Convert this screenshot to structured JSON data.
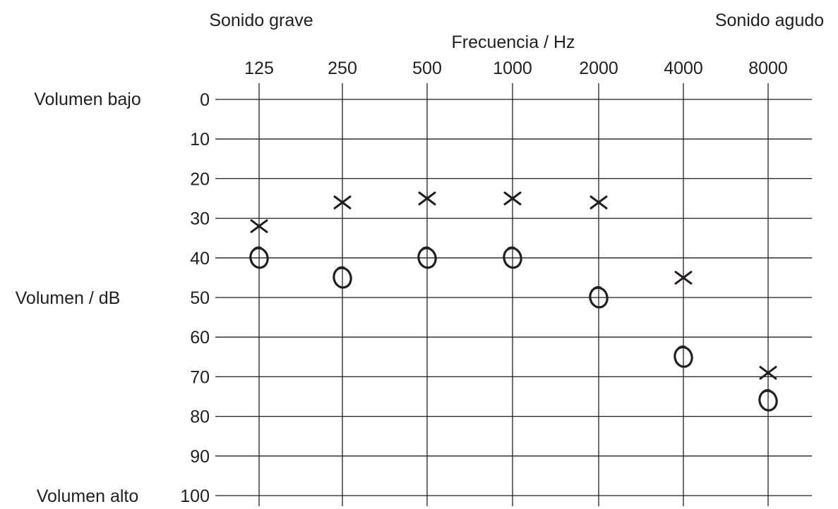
{
  "chart_data": {
    "type": "scatter",
    "xlabel": "Frecuencia / Hz",
    "ylabel": "Volumen / dB",
    "corner_labels": {
      "left_top": "Sonido grave",
      "right_top": "Sonido agudo",
      "y_top": "Volumen bajo",
      "y_bottom": "Volumen alto"
    },
    "x_categories": [
      "125",
      "250",
      "500",
      "1000",
      "2000",
      "4000",
      "8000"
    ],
    "y_ticks": [
      "0",
      "10",
      "20",
      "30",
      "40",
      "50",
      "60",
      "70",
      "80",
      "90",
      "100"
    ],
    "ylim": [
      0,
      100
    ],
    "y_inverted": true,
    "grid": true,
    "series": [
      {
        "marker": "x",
        "values": [
          32,
          26,
          25,
          25,
          26,
          45,
          69
        ]
      },
      {
        "marker": "o",
        "values": [
          40,
          45,
          40,
          40,
          50,
          65,
          76
        ]
      }
    ]
  }
}
